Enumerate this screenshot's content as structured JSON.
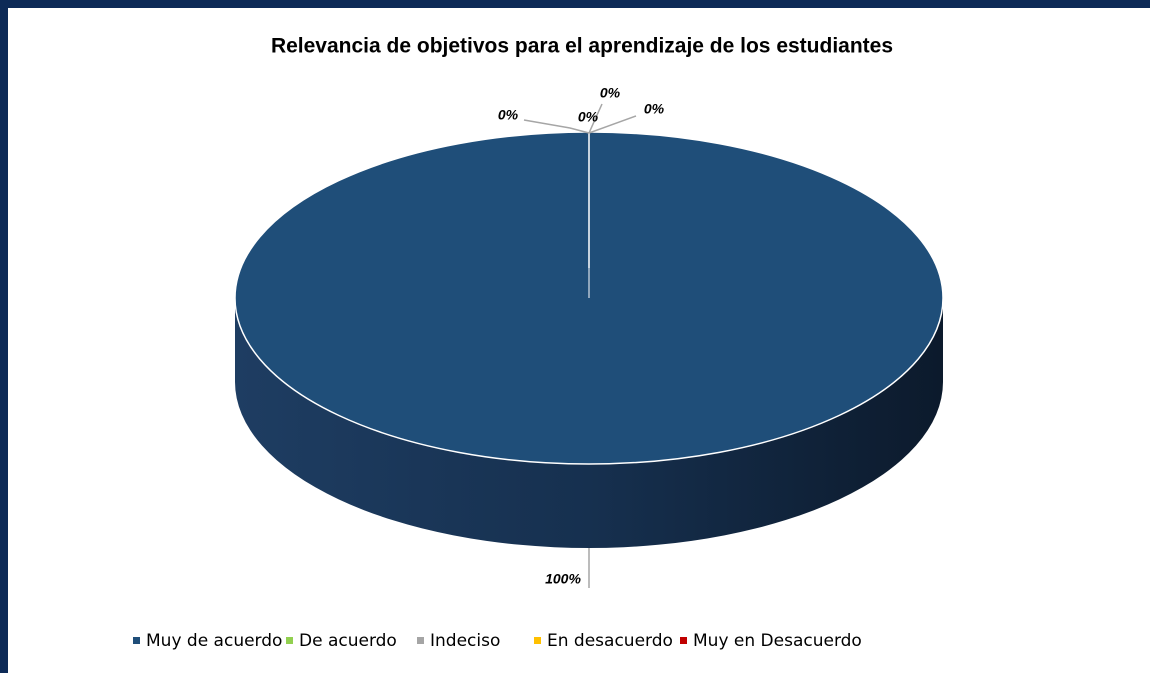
{
  "chart_data": {
    "type": "pie",
    "title": "Relevancia de objetivos para el aprendizaje de los estudiantes",
    "categories": [
      "Muy de  acuerdo",
      "De acuerdo",
      "Indeciso",
      "En desacuerdo",
      "Muy en Desacuerdo"
    ],
    "values": [
      100,
      0,
      0,
      0,
      0
    ],
    "value_labels": [
      "100%",
      "0%",
      "0%",
      "0%",
      "0%"
    ],
    "colors": [
      "#1f4e79",
      "#92d050",
      "#a5a5a5",
      "#ffc000",
      "#c00000"
    ],
    "legend": "bottom"
  }
}
